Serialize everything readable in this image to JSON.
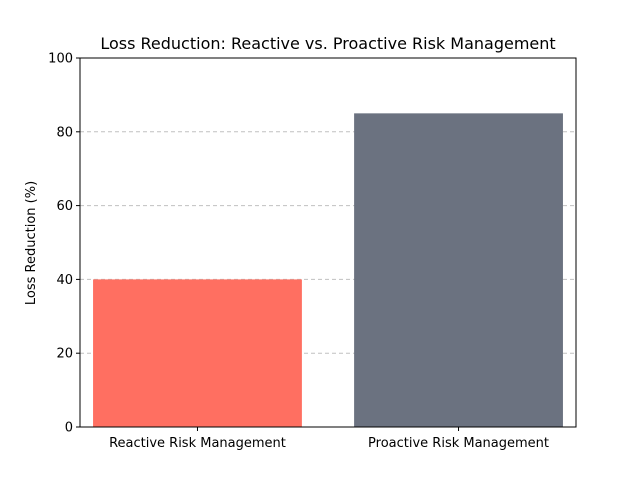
{
  "chart_data": {
    "type": "bar",
    "title": "Loss Reduction: Reactive vs. Proactive Risk Management",
    "xlabel": "",
    "ylabel": "Loss Reduction (%)",
    "categories": [
      "Reactive Risk Management",
      "Proactive Risk Management"
    ],
    "values": [
      40,
      85
    ],
    "colors": [
      "#ff6f61",
      "#6b7280"
    ],
    "ylim": [
      0,
      100
    ],
    "yticks": [
      0,
      20,
      40,
      60,
      80,
      100
    ],
    "grid": "y-dashed",
    "grid_color": "#c0c0c0",
    "legend": "none"
  }
}
